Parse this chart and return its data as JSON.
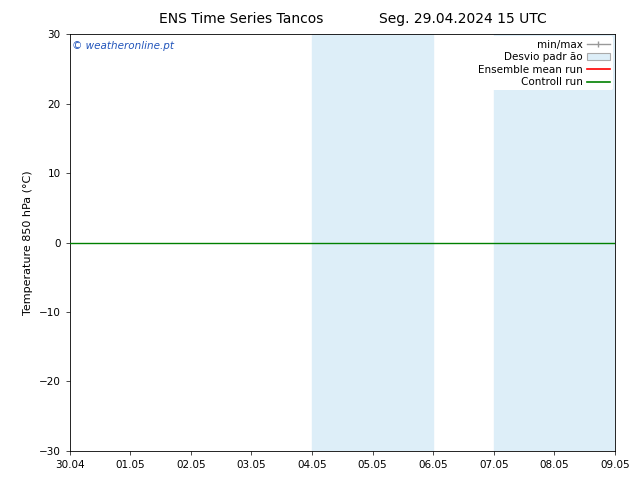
{
  "title_left": "ENS Time Series Tancos",
  "title_right": "Seg. 29.04.2024 15 UTC",
  "ylabel": "Temperature 850 hPa (°C)",
  "watermark": "© weatheronline.pt",
  "ylim": [
    -30,
    30
  ],
  "yticks": [
    -30,
    -20,
    -10,
    0,
    10,
    20,
    30
  ],
  "xtick_labels": [
    "30.04",
    "01.05",
    "02.05",
    "03.05",
    "04.05",
    "05.05",
    "06.05",
    "07.05",
    "08.05",
    "09.05"
  ],
  "shaded_bands": [
    {
      "xstart": 4,
      "xend": 6
    },
    {
      "xstart": 7,
      "xend": 9
    }
  ],
  "shaded_color": "#ddeef8",
  "background_color": "#ffffff",
  "hline_y": 0,
  "hline_color": "#008000",
  "hline_lw": 1.0,
  "title_fontsize": 10,
  "tick_fontsize": 7.5,
  "ylabel_fontsize": 8,
  "watermark_color": "#2255bb",
  "legend_fontsize": 7.5
}
